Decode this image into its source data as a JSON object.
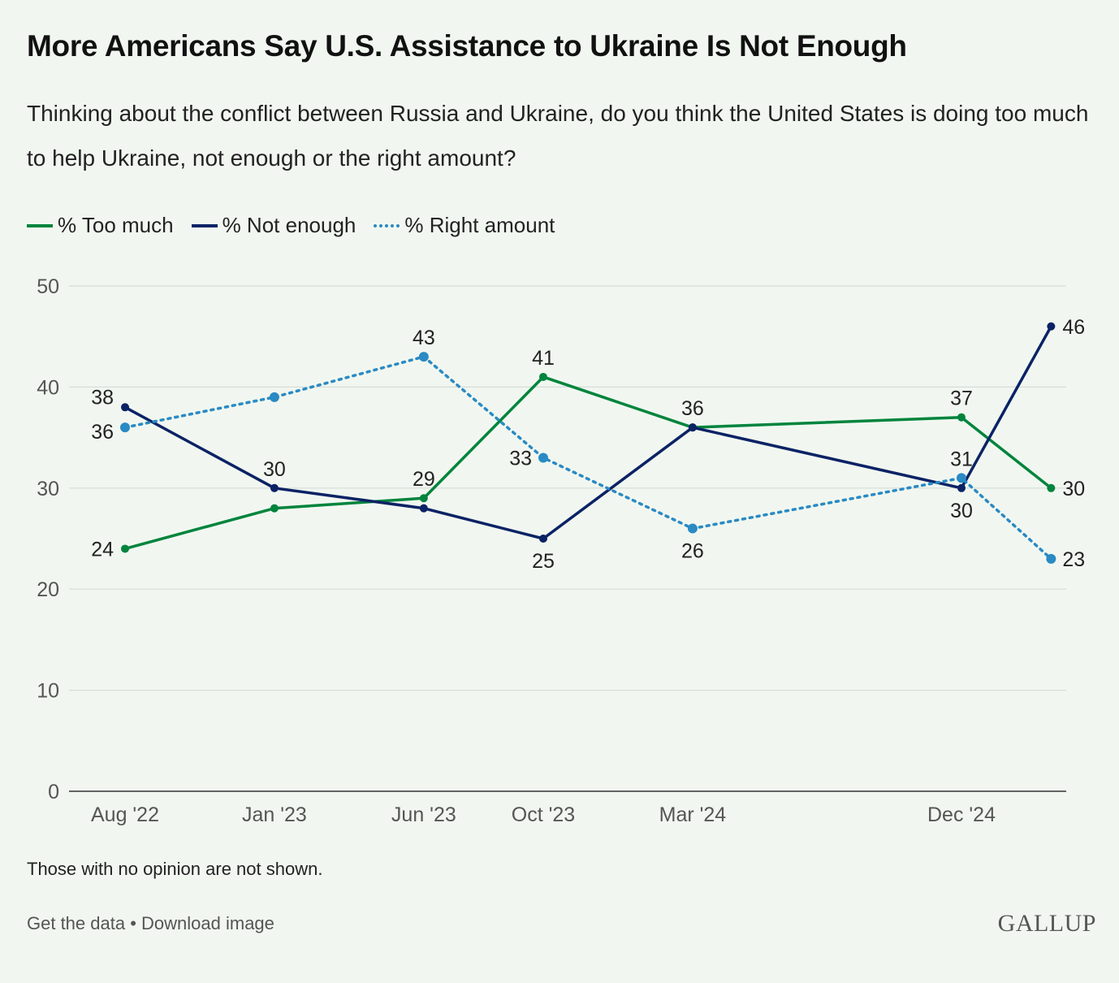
{
  "title": "More Americans Say U.S. Assistance to Ukraine Is Not Enough",
  "subtitle": "Thinking about the conflict between Russia and Ukraine, do you think the United States is doing too much to help Ukraine, not enough or the right amount?",
  "note": "Those with no opinion are not shown.",
  "footer": {
    "get_data": "Get the data",
    "separator": " • ",
    "download": "Download image"
  },
  "logo": "GALLUP",
  "chart_data": {
    "type": "line",
    "xlabel": "",
    "ylabel": "",
    "ylim": [
      0,
      50
    ],
    "yticks": [
      0,
      10,
      20,
      30,
      40,
      50
    ],
    "grid": true,
    "legend_placement": "top-left",
    "x_months_since_aug22": [
      0,
      5,
      10,
      14,
      19,
      28,
      31
    ],
    "x_tick_labels": [
      "Aug '22",
      "Jan '23",
      "Jun '23",
      "Oct '23",
      "Mar '24",
      "Dec '24",
      ""
    ],
    "series": [
      {
        "name": "% Too much",
        "color": "#00843d",
        "style": "solid",
        "values": [
          24,
          28,
          29,
          41,
          36,
          37,
          30
        ],
        "label_pos": [
          "left",
          null,
          "above",
          "above",
          null,
          "above",
          "right"
        ]
      },
      {
        "name": "% Not enough",
        "color": "#0b2265",
        "style": "solid",
        "values": [
          38,
          30,
          28,
          25,
          36,
          30,
          46
        ],
        "label_pos": [
          "left-up",
          "above",
          null,
          "below",
          "above",
          "below",
          "right"
        ]
      },
      {
        "name": "% Right amount",
        "color": "#2a8ac4",
        "style": "dotted",
        "values": [
          36,
          39,
          43,
          33,
          26,
          31,
          23
        ],
        "label_pos": [
          "left-down",
          null,
          "above",
          "left",
          "below",
          "above",
          "right"
        ]
      }
    ]
  }
}
